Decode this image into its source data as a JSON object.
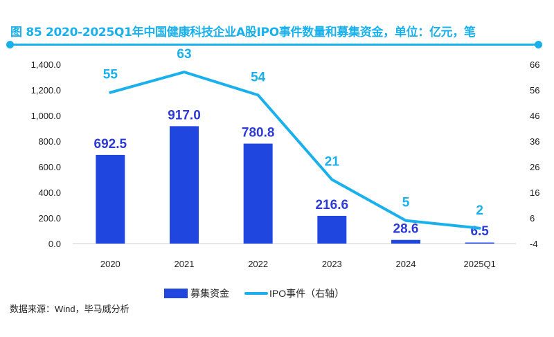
{
  "title": "图 85 2020-2025Q1年中国健康科技企业A股IPO事件数量和募集资金，单位：亿元，笔",
  "source": "数据来源：Wind，毕马威分析",
  "colors": {
    "bar": "#1F47E0",
    "line": "#1AB0EC",
    "bar_label": "#2D3BD6",
    "title": "#1AB0EC"
  },
  "chart_data": {
    "type": "bar+line",
    "title": "图 85 2020-2025Q1年中国健康科技企业A股IPO事件数量和募集资金，单位：亿元，笔",
    "categories": [
      "2020",
      "2021",
      "2022",
      "2023",
      "2024",
      "2025Q1"
    ],
    "series": [
      {
        "name": "募集资金",
        "type": "bar",
        "axis": "left",
        "values": [
          692.5,
          917.0,
          780.8,
          216.6,
          28.6,
          6.5
        ],
        "labels": [
          "692.5",
          "917.0",
          "780.8",
          "216.6",
          "28.6",
          "6.5"
        ]
      },
      {
        "name": "IPO事件（右轴）",
        "type": "line",
        "axis": "right",
        "values": [
          55,
          63,
          54,
          21,
          5,
          2
        ],
        "labels": [
          "55",
          "63",
          "54",
          "21",
          "5",
          "2"
        ]
      }
    ],
    "left_axis": {
      "ylim": [
        0,
        1400
      ],
      "ticks": [
        "0.0",
        "200.0",
        "400.0",
        "600.0",
        "800.0",
        "1,000.0",
        "1,200.0",
        "1,400.0"
      ],
      "tick_values": [
        0,
        200,
        400,
        600,
        800,
        1000,
        1200,
        1400
      ]
    },
    "right_axis": {
      "ylim": [
        -4,
        66
      ],
      "ticks": [
        "-4",
        "6",
        "16",
        "26",
        "36",
        "46",
        "56",
        "66"
      ],
      "tick_values": [
        -4,
        6,
        16,
        26,
        36,
        46,
        56,
        66
      ]
    },
    "grid": false,
    "legend": {
      "position": "bottom",
      "entries": [
        "募集资金",
        "IPO事件（右轴）"
      ]
    }
  }
}
